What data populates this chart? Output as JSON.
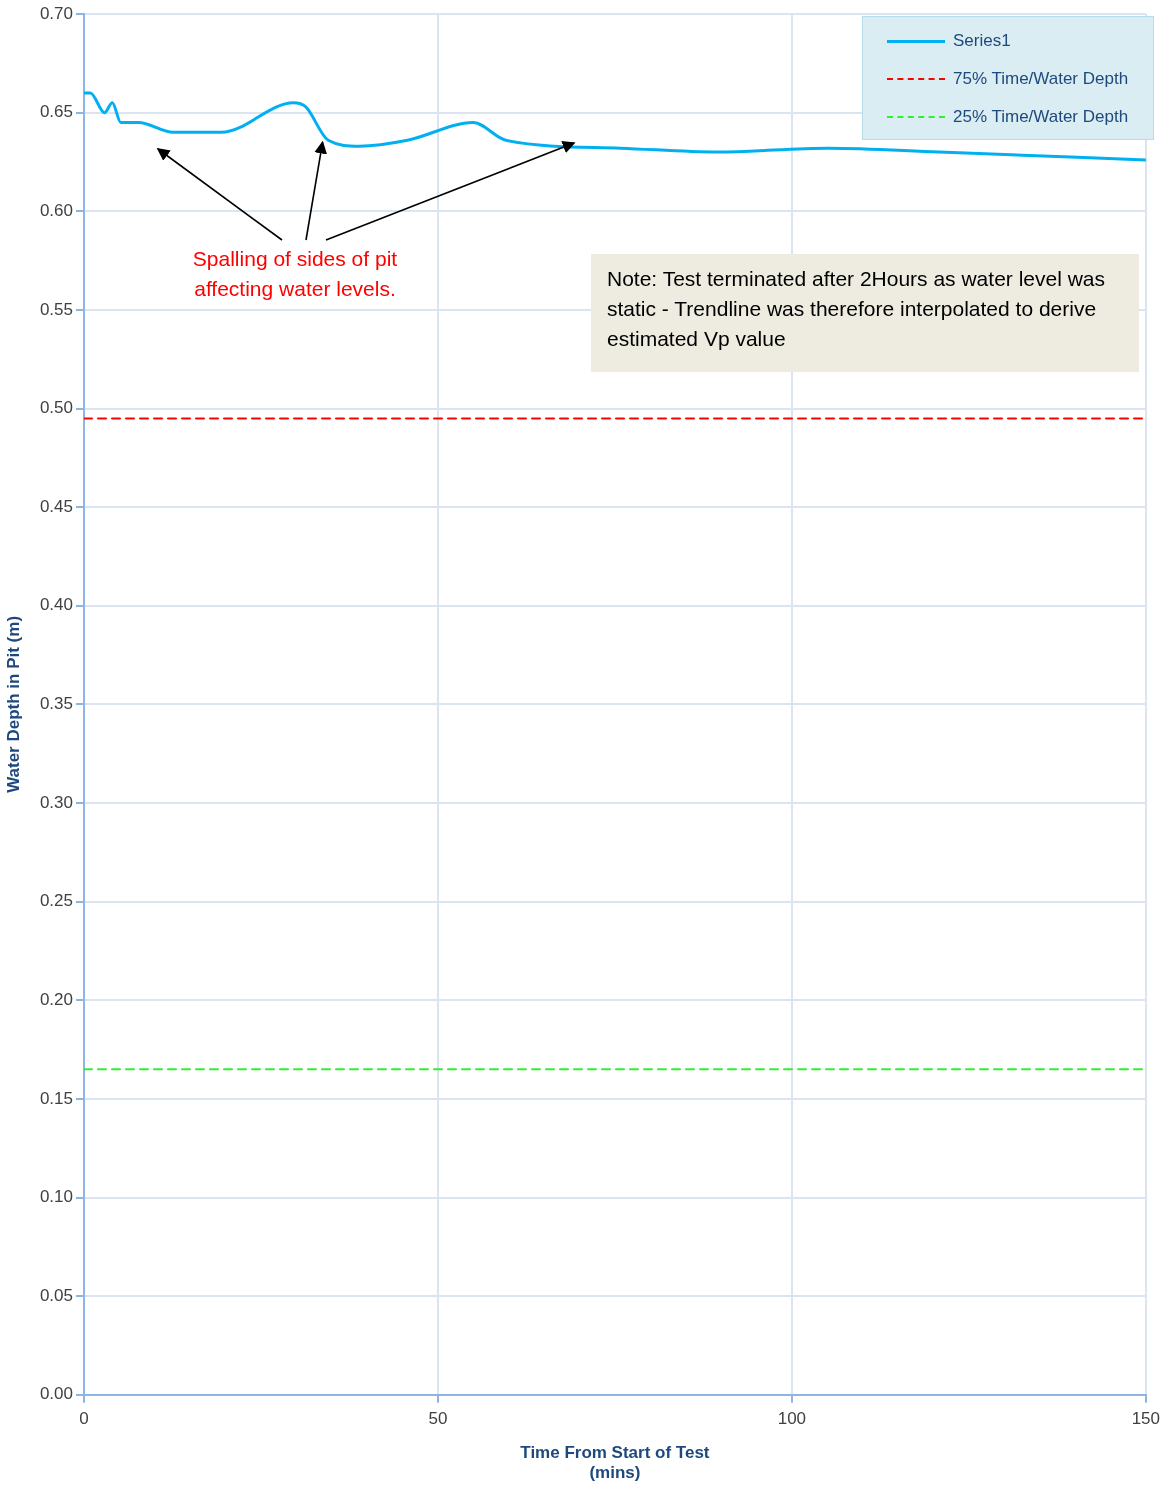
{
  "chart_data": {
    "type": "line",
    "xlabel": "Time From Start of Test\n(mins)",
    "ylabel": "Water Depth in Pit (m)",
    "xlim": [
      0,
      150
    ],
    "xticks": [
      0,
      50,
      100,
      150
    ],
    "ylim": [
      0,
      0.7
    ],
    "yticks": [
      {
        "value": 0,
        "label": "0.00"
      },
      {
        "value": 0.05,
        "label": "0.05"
      },
      {
        "value": 0.1,
        "label": "0.10"
      },
      {
        "value": 0.15,
        "label": "0.15"
      },
      {
        "value": 0.2,
        "label": "0.20"
      },
      {
        "value": 0.25,
        "label": "0.25"
      },
      {
        "value": 0.3,
        "label": "0.30"
      },
      {
        "value": 0.35,
        "label": "0.35"
      },
      {
        "value": 0.4,
        "label": "0.40"
      },
      {
        "value": 0.45,
        "label": "0.45"
      },
      {
        "value": 0.5,
        "label": "0.50"
      },
      {
        "value": 0.55,
        "label": "0.55"
      },
      {
        "value": 0.6,
        "label": "0.60"
      },
      {
        "value": 0.65,
        "label": "0.65"
      },
      {
        "value": 0.7,
        "label": "0.70"
      }
    ],
    "grid": true,
    "legend": "top right",
    "marker": "none",
    "series": [
      {
        "name": "Series1",
        "color": "#00b0f0",
        "line_style": "solid",
        "x": [
          0.1,
          0.9,
          2.9,
          4.0,
          5.2,
          7.7,
          12.6,
          18.2,
          19.4,
          29.6,
          31.3,
          34.5,
          38.9,
          45.7,
          55.0,
          59.6,
          75.8,
          89.5,
          105.2,
          120.8,
          150
        ],
        "values": [
          0.66,
          0.66,
          0.65,
          0.655,
          0.645,
          0.645,
          0.64,
          0.64,
          0.64,
          0.655,
          0.653,
          0.636,
          0.633,
          0.636,
          0.645,
          0.636,
          0.632,
          0.63,
          0.632,
          0.63,
          0.626
        ]
      },
      {
        "name": "75% Time/Water Depth",
        "color": "#ff0000",
        "line_style": "dashed",
        "x": [
          0,
          150
        ],
        "values": [
          0.495,
          0.495
        ]
      },
      {
        "name": "25% Time/Water Depth",
        "color": "#33ee33",
        "line_style": "dashed",
        "x": [
          0,
          150
        ],
        "values": [
          0.165,
          0.165
        ]
      }
    ],
    "annotations": [
      {
        "text": "Spalling of sides of pit affecting water levels.",
        "x": 33.7,
        "y": 0.638
      },
      "Note: Test terminated after 2Hours as water level was static - Trendline was therefore interpolated to derive estimated Vp value"
    ]
  }
}
